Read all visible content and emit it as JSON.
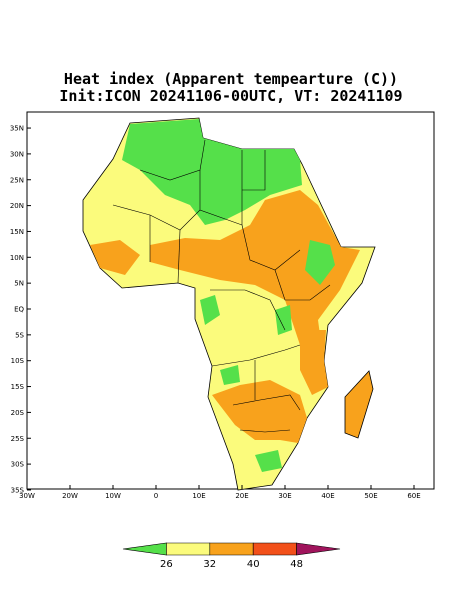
{
  "map": {
    "title": "Heat index (Apparent tempearture (C))",
    "subtitle": "Init:ICON 20241106-00UTC, VT: 20241109",
    "lon_ticks": [
      {
        "value": -30,
        "label": "30W"
      },
      {
        "value": -20,
        "label": "20W"
      },
      {
        "value": -10,
        "label": "10W"
      },
      {
        "value": 0,
        "label": "0"
      },
      {
        "value": 10,
        "label": "10E"
      },
      {
        "value": 20,
        "label": "20E"
      },
      {
        "value": 30,
        "label": "30E"
      },
      {
        "value": 40,
        "label": "40E"
      },
      {
        "value": 50,
        "label": "50E"
      },
      {
        "value": 60,
        "label": "60E"
      }
    ],
    "lat_ticks": [
      {
        "value": 35,
        "label": "35N"
      },
      {
        "value": 30,
        "label": "30N"
      },
      {
        "value": 25,
        "label": "25N"
      },
      {
        "value": 20,
        "label": "20N"
      },
      {
        "value": 15,
        "label": "15N"
      },
      {
        "value": 10,
        "label": "10N"
      },
      {
        "value": 5,
        "label": "5N"
      },
      {
        "value": 0,
        "label": "EQ"
      },
      {
        "value": -5,
        "label": "5S"
      },
      {
        "value": -10,
        "label": "10S"
      },
      {
        "value": -15,
        "label": "15S"
      },
      {
        "value": -20,
        "label": "20S"
      },
      {
        "value": -25,
        "label": "25S"
      },
      {
        "value": -30,
        "label": "30S"
      },
      {
        "value": -35,
        "label": "35S"
      }
    ],
    "colorbar": {
      "levels": [
        26,
        32,
        40,
        48
      ],
      "colors": [
        "#55e04a",
        "#fbfb7c",
        "#f8a21c",
        "#f2501a",
        "#a0145c"
      ]
    }
  }
}
